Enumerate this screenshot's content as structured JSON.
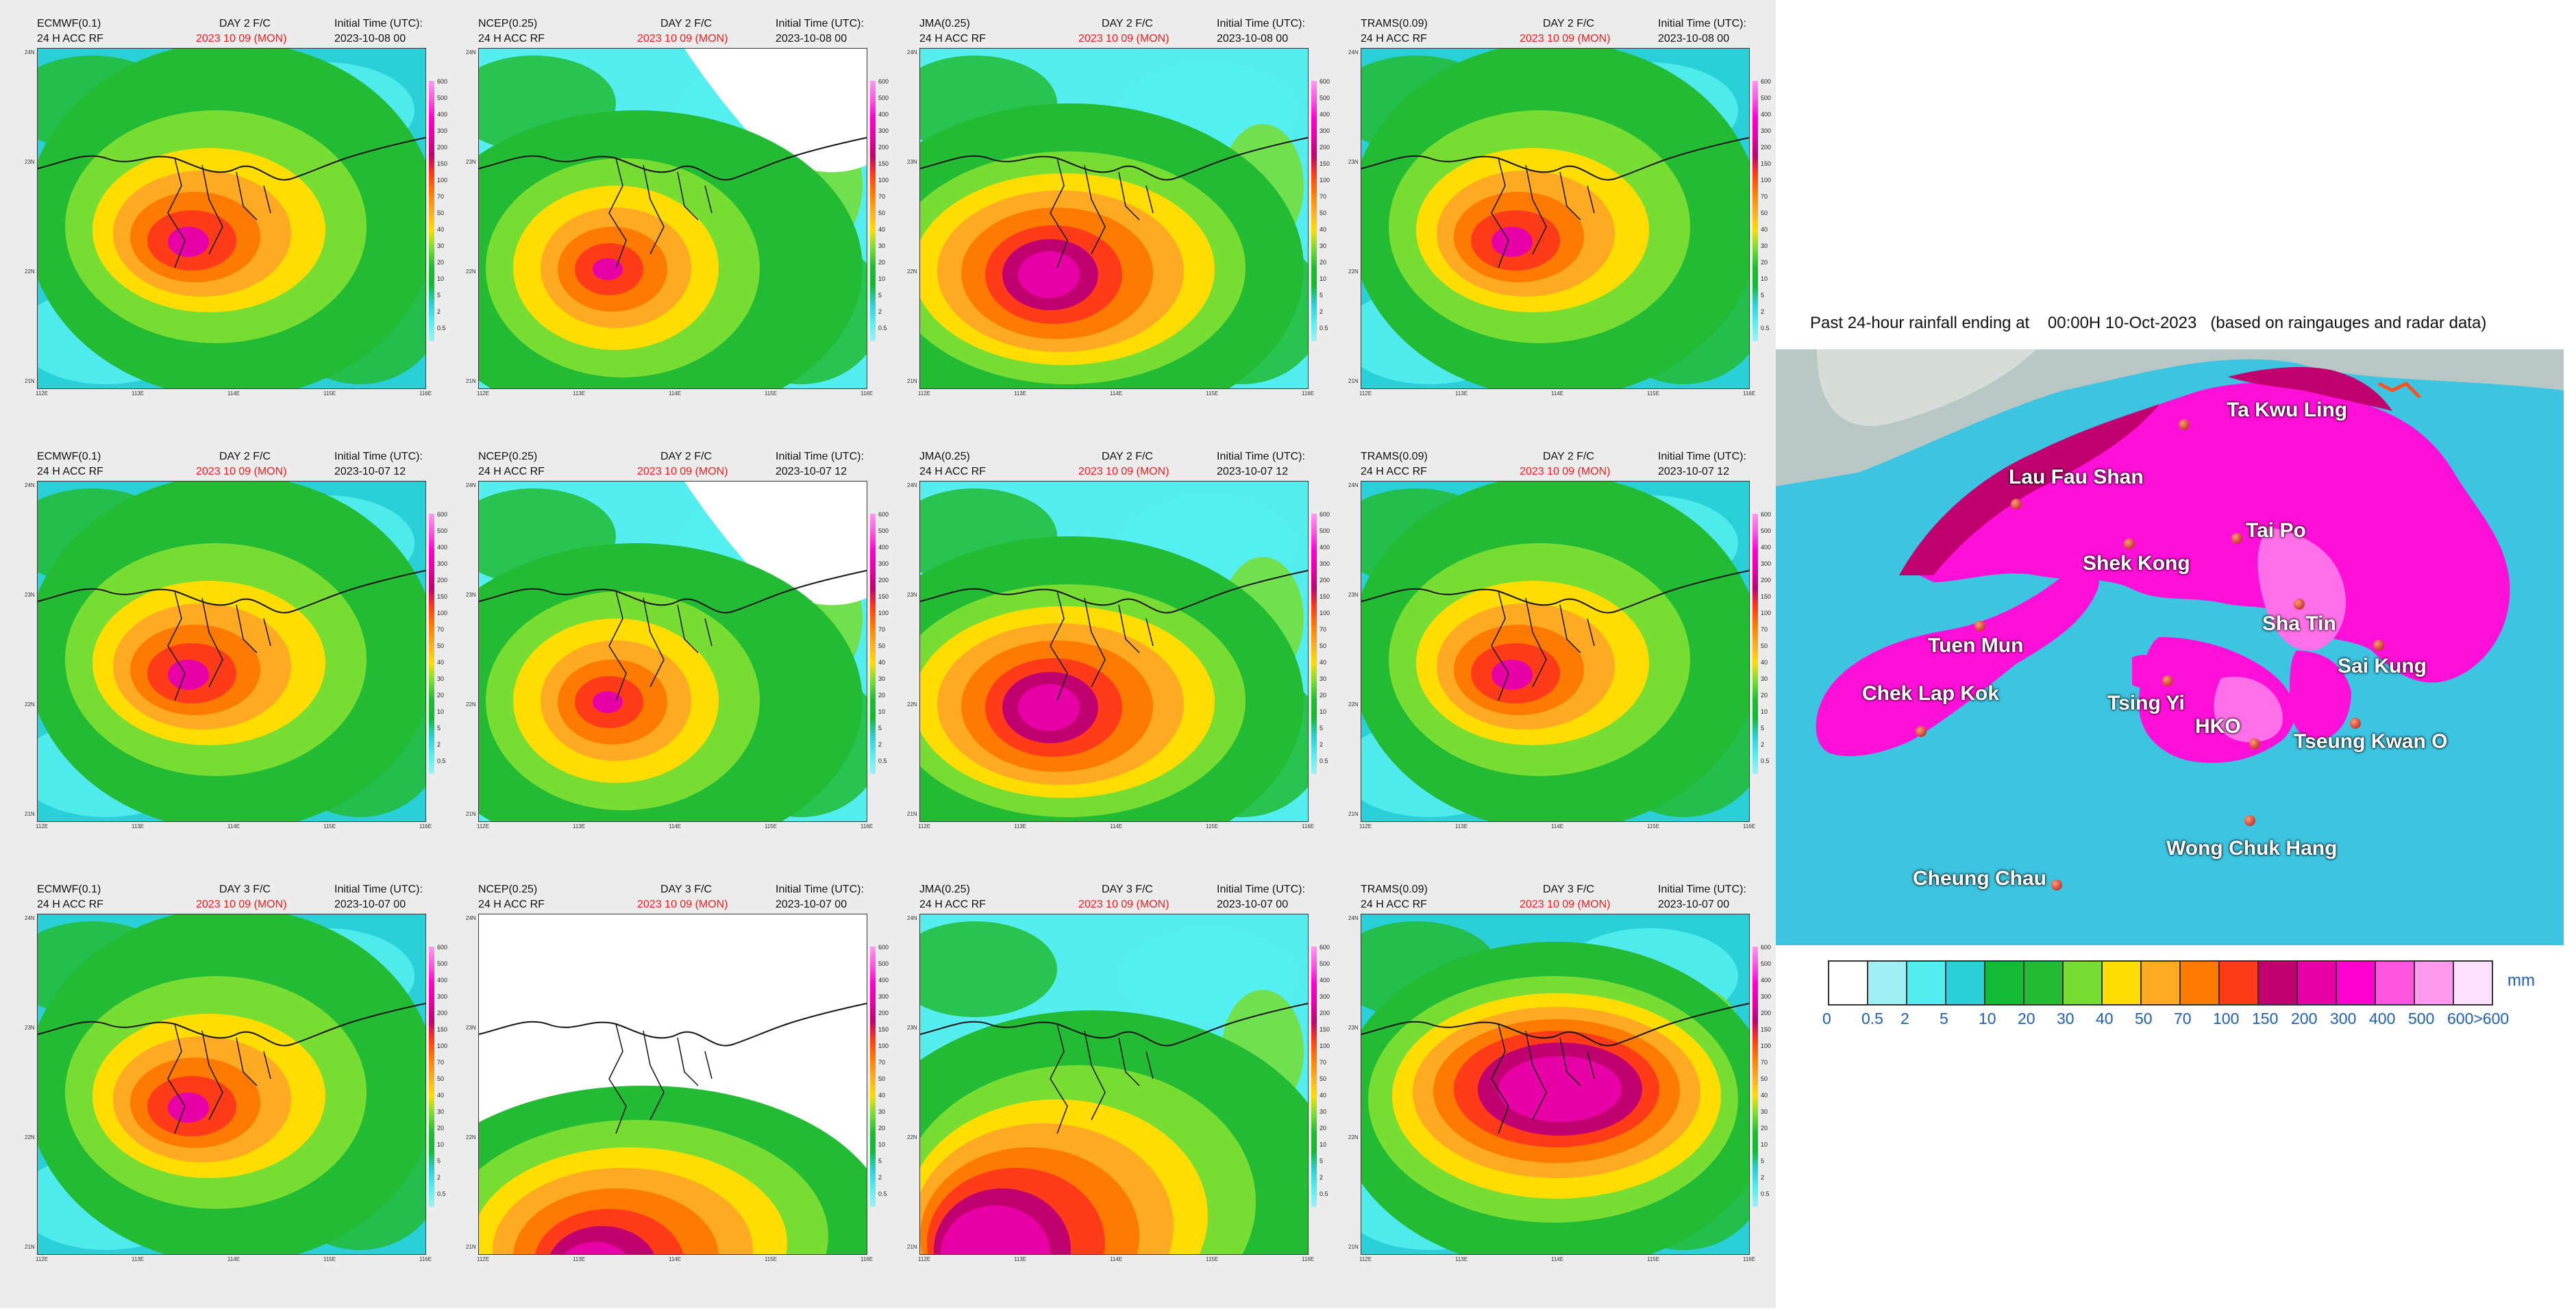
{
  "left_panels": [
    {
      "model": "ECMWF(0.1)",
      "acc": "24 H ACC RF",
      "day": "DAY 2 F/C",
      "date": "2023 10 09 (MON)",
      "init_label": "Initial Time (UTC):",
      "init": "2023-10-08  00",
      "scenario": "center"
    },
    {
      "model": "NCEP(0.25)",
      "acc": "24 H ACC RF",
      "day": "DAY 2 F/C",
      "date": "2023 10 09 (MON)",
      "init_label": "Initial Time (UTC):",
      "init": "2023-10-08  00",
      "scenario": "dry-ne"
    },
    {
      "model": "JMA(0.25)",
      "acc": "24 H ACC RF",
      "day": "DAY 2 F/C",
      "date": "2023 10 09 (MON)",
      "init_label": "Initial Time (UTC):",
      "init": "2023-10-08  00",
      "scenario": "broad"
    },
    {
      "model": "TRAMS(0.09)",
      "acc": "24 H ACC RF",
      "day": "DAY 2 F/C",
      "date": "2023 10 09 (MON)",
      "init_label": "Initial Time (UTC):",
      "init": "2023-10-08  00",
      "scenario": "center"
    },
    {
      "model": "ECMWF(0.1)",
      "acc": "24 H ACC RF",
      "day": "DAY 2 F/C",
      "date": "2023 10 09 (MON)",
      "init_label": "Initial Time (UTC):",
      "init": "2023-10-07  12",
      "scenario": "center"
    },
    {
      "model": "NCEP(0.25)",
      "acc": "24 H ACC RF",
      "day": "DAY 2 F/C",
      "date": "2023 10 09 (MON)",
      "init_label": "Initial Time (UTC):",
      "init": "2023-10-07  12",
      "scenario": "dry-ne"
    },
    {
      "model": "JMA(0.25)",
      "acc": "24 H ACC RF",
      "day": "DAY 2 F/C",
      "date": "2023 10 09 (MON)",
      "init_label": "Initial Time (UTC):",
      "init": "2023-10-07  12",
      "scenario": "broad"
    },
    {
      "model": "TRAMS(0.09)",
      "acc": "24 H ACC RF",
      "day": "DAY 2 F/C",
      "date": "2023 10 09 (MON)",
      "init_label": "Initial Time (UTC):",
      "init": "2023-10-07  12",
      "scenario": "center"
    },
    {
      "model": "ECMWF(0.1)",
      "acc": "24 H ACC RF",
      "day": "DAY 3 F/C",
      "date": "2023 10 09 (MON)",
      "init_label": "Initial Time (UTC):",
      "init": "2023-10-07  00",
      "scenario": "center"
    },
    {
      "model": "NCEP(0.25)",
      "acc": "24 H ACC RF",
      "day": "DAY 3 F/C",
      "date": "2023 10 09 (MON)",
      "init_label": "Initial Time (UTC):",
      "init": "2023-10-07  00",
      "scenario": "south"
    },
    {
      "model": "JMA(0.25)",
      "acc": "24 H ACC RF",
      "day": "DAY 3 F/C",
      "date": "2023 10 09 (MON)",
      "init_label": "Initial Time (UTC):",
      "init": "2023-10-07  00",
      "scenario": "southwest"
    },
    {
      "model": "TRAMS(0.09)",
      "acc": "24 H ACC RF",
      "day": "DAY 3 F/C",
      "date": "2023 10 09 (MON)",
      "init_label": "Initial Time (UTC):",
      "init": "2023-10-07  00",
      "scenario": "elongated"
    }
  ],
  "panel_colorbar_labels": [
    "600",
    "500",
    "400",
    "300",
    "200",
    "150",
    "100",
    "70",
    "50",
    "40",
    "30",
    "20",
    "10",
    "5",
    "2",
    "0.5"
  ],
  "panel_lat_labels": [
    "24N",
    "23N",
    "22N",
    "21N"
  ],
  "panel_lon_labels": [
    "112E",
    "113E",
    "114E",
    "115E",
    "116E"
  ],
  "rainfall_title_prefix": "Past 24-hour rainfall ending at",
  "rainfall_title_time": "00:00H 10-Oct-2023",
  "rainfall_title_suffix": "(based on raingauges and radar data)",
  "places": [
    {
      "name": "Ta Kwu Ling"
    },
    {
      "name": "Lau Fau Shan"
    },
    {
      "name": "Tai Po"
    },
    {
      "name": "Shek Kong"
    },
    {
      "name": "Sha Tin"
    },
    {
      "name": "Tuen Mun"
    },
    {
      "name": "Sai Kung"
    },
    {
      "name": "Chek Lap Kok"
    },
    {
      "name": "Tsing Yi"
    },
    {
      "name": "HKO"
    },
    {
      "name": "Tseung Kwan O"
    },
    {
      "name": "Wong Chuk Hang"
    },
    {
      "name": "Cheung Chau"
    }
  ],
  "legend": {
    "unit": "mm",
    "colors": [
      "#ffffff",
      "#9ff0f5",
      "#55eef0",
      "#2ad0d8",
      "#11bb33",
      "#22bb33",
      "#77dd33",
      "#ffdd00",
      "#ffaa22",
      "#ff7a00",
      "#ff3b1a",
      "#c0006f",
      "#e800a6",
      "#ff00d0",
      "#ff55e0",
      "#ff99ee",
      "#ffe0ff"
    ],
    "labels": [
      "0",
      "0.5",
      "2",
      "5",
      "10",
      "20",
      "30",
      "40",
      "50",
      "70",
      "100",
      "150",
      "200",
      "300",
      "400",
      "500",
      "600>600"
    ]
  },
  "colors": {
    "header_date": "#ff1a1a",
    "legend_text": "#1f5fb8"
  }
}
